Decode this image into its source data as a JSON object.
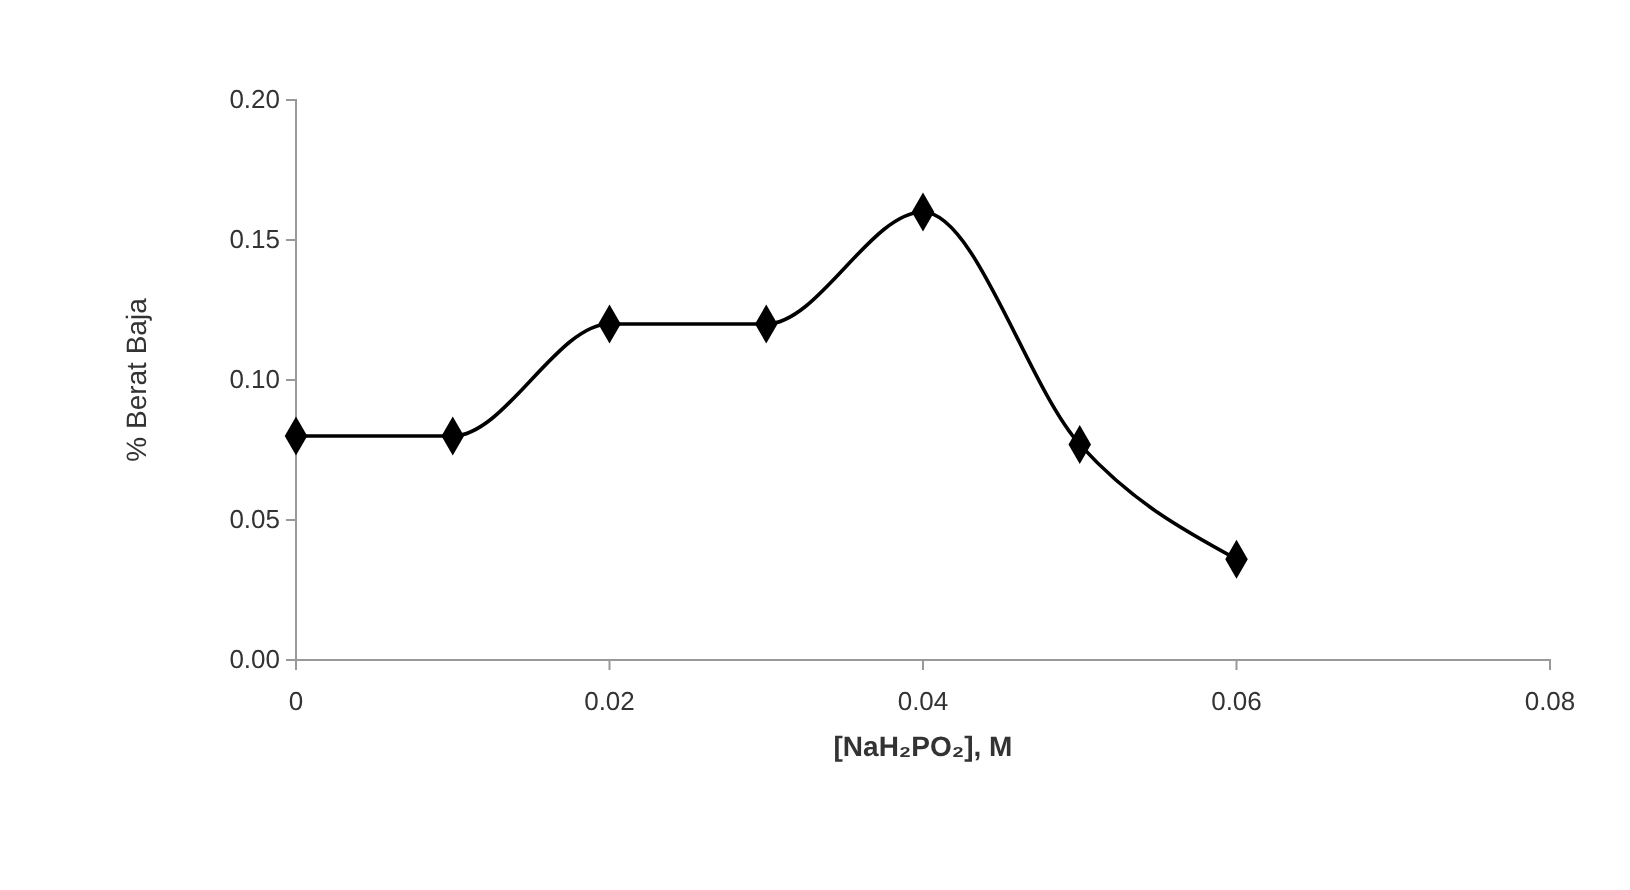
{
  "chart_data": {
    "type": "line",
    "xlabel": "[NaH₂PO₂], M",
    "ylabel": "% Berat Baja",
    "x": [
      0,
      0.01,
      0.02,
      0.03,
      0.04,
      0.05,
      0.06
    ],
    "series": [
      {
        "color": "#000000",
        "values": [
          0.08,
          0.08,
          0.12,
          0.12,
          0.16,
          0.077,
          0.036
        ]
      }
    ],
    "xlim": [
      0,
      0.08
    ],
    "xticks": [
      {
        "value": 0,
        "label": "0"
      },
      {
        "value": 0.02,
        "label": "0.02"
      },
      {
        "value": 0.04,
        "label": "0.04"
      },
      {
        "value": 0.06,
        "label": "0.06"
      },
      {
        "value": 0.08,
        "label": "0.08"
      }
    ],
    "ylim": [
      0,
      0.2
    ],
    "yticks": [
      {
        "value": 0,
        "label": "0.00"
      },
      {
        "value": 0.05,
        "label": "0.05"
      },
      {
        "value": 0.1,
        "label": "0.10"
      },
      {
        "value": 0.15,
        "label": "0.15"
      },
      {
        "value": 0.2,
        "label": "0.20"
      }
    ],
    "marker": "diamond",
    "line_style": "solid",
    "grid": false
  }
}
